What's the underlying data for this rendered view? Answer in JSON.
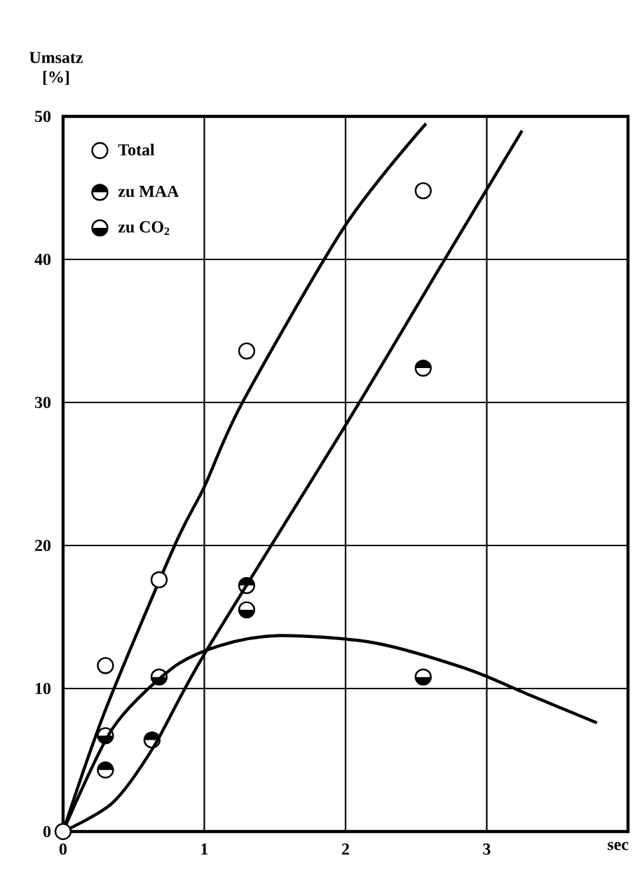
{
  "chart_data": {
    "type": "scatter",
    "xlabel": "sec",
    "ylabel": "Umsatz [%]",
    "xlim": [
      0,
      4
    ],
    "ylim": [
      0,
      50
    ],
    "xticks": [
      0,
      1,
      2,
      3
    ],
    "yticks": [
      0,
      10,
      20,
      30,
      40,
      50
    ],
    "grid": true,
    "legend": "top left",
    "series": [
      {
        "name": "Total",
        "color": "#000000",
        "marker": "circle",
        "x": [
          0,
          0.3,
          0.68,
          1.3,
          2.55
        ],
        "values": [
          0,
          11.6,
          17.6,
          33.6,
          44.8
        ]
      },
      {
        "name": "zu MAA",
        "color": "#000000",
        "marker": "circle",
        "x": [
          0.3,
          0.63,
          1.3,
          2.55
        ],
        "values": [
          4.3,
          6.4,
          17.2,
          32.4
        ]
      },
      {
        "name": "zu CO$_{2}$",
        "color": "#000000",
        "marker": "circle",
        "x": [
          0.3,
          0.68,
          1.3,
          2.55
        ],
        "values": [
          6.7,
          10.8,
          15.5,
          10.8
        ]
      },
      {
        "type": "line",
        "color": "#000000",
        "marker": "none",
        "x": [
          0,
          0.3,
          0.79,
          1.0,
          1.27,
          2.0,
          2.57
        ],
        "values": [
          0,
          8.5,
          20,
          24.1,
          30,
          42.4,
          49.5
        ]
      },
      {
        "type": "line",
        "color": "#000000",
        "marker": "none",
        "x": [
          0,
          0.35,
          0.64,
          1.0,
          2.0,
          2.69,
          3.25
        ],
        "values": [
          0,
          2.0,
          5.9,
          12.4,
          28.4,
          39.8,
          49
        ]
      },
      {
        "type": "line",
        "color": "#000000",
        "marker": "none",
        "x": [
          0,
          0.35,
          0.77,
          1.11,
          1.53,
          2.2,
          2.85,
          3.29,
          3.78
        ],
        "values": [
          0,
          7.2,
          11.4,
          13.0,
          13.7,
          13.2,
          11.4,
          9.6,
          7.6
        ]
      }
    ]
  }
}
